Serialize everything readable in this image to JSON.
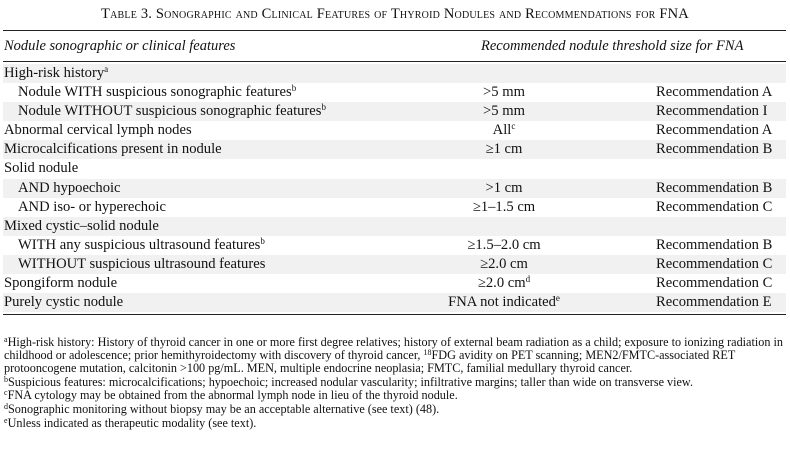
{
  "title": "Table 3. Sonographic and Clinical Features of Thyroid Nodules and Recommendations for FNA",
  "columns": {
    "feature": "Nodule sonographic or clinical features",
    "threshold": "Recommended nodule threshold size for FNA"
  },
  "rows": [
    {
      "feature": "High-risk history",
      "feature_sup": "a",
      "size": "",
      "size_sup": "",
      "rec": "",
      "indent": false,
      "shade": true
    },
    {
      "feature": "Nodule WITH suspicious sonographic features",
      "feature_sup": "b",
      "size": ">5 mm",
      "size_sup": "",
      "rec": "Recommendation A",
      "indent": true,
      "shade": false
    },
    {
      "feature": "Nodule WITHOUT suspicious sonographic features",
      "feature_sup": "b",
      "size": ">5 mm",
      "size_sup": "",
      "rec": "Recommendation I",
      "indent": true,
      "shade": true
    },
    {
      "feature": "Abnormal cervical lymph nodes",
      "feature_sup": "",
      "size": "All",
      "size_sup": "c",
      "rec": "Recommendation A",
      "indent": false,
      "shade": false
    },
    {
      "feature": "Microcalcifications present in nodule",
      "feature_sup": "",
      "size": "≥1 cm",
      "size_sup": "",
      "rec": "Recommendation B",
      "indent": false,
      "shade": true
    },
    {
      "feature": "Solid nodule",
      "feature_sup": "",
      "size": "",
      "size_sup": "",
      "rec": "",
      "indent": false,
      "shade": false
    },
    {
      "feature": "AND hypoechoic",
      "feature_sup": "",
      "size": ">1 cm",
      "size_sup": "",
      "rec": "Recommendation B",
      "indent": true,
      "shade": true
    },
    {
      "feature": "AND iso- or hyperechoic",
      "feature_sup": "",
      "size": "≥1–1.5 cm",
      "size_sup": "",
      "rec": "Recommendation C",
      "indent": true,
      "shade": false
    },
    {
      "feature": "Mixed cystic–solid nodule",
      "feature_sup": "",
      "size": "",
      "size_sup": "",
      "rec": "",
      "indent": false,
      "shade": true
    },
    {
      "feature": "WITH any suspicious ultrasound features",
      "feature_sup": "b",
      "size": "≥1.5–2.0 cm",
      "size_sup": "",
      "rec": "Recommendation B",
      "indent": true,
      "shade": false
    },
    {
      "feature": "WITHOUT suspicious ultrasound features",
      "feature_sup": "",
      "size": "≥2.0 cm",
      "size_sup": "",
      "rec": "Recommendation C",
      "indent": true,
      "shade": true
    },
    {
      "feature": "Spongiform nodule",
      "feature_sup": "",
      "size": "≥2.0 cm",
      "size_sup": "d",
      "rec": "Recommendation C",
      "indent": false,
      "shade": false
    },
    {
      "feature": "Purely cystic nodule",
      "feature_sup": "",
      "size": "FNA not indicated",
      "size_sup": "e",
      "rec": "Recommendation E",
      "indent": false,
      "shade": true
    }
  ],
  "footnotes": [
    {
      "mark": "a",
      "text": "High-risk history: History of thyroid cancer in one or more first degree relatives; history of external beam radiation as a child; exposure to ionizing radiation in childhood or adolescence; prior hemithyroidectomy with discovery of thyroid cancer, ",
      "text_sup": "18",
      "text_after": "FDG avidity on PET scanning; MEN2/FMTC-associated RET protooncogene mutation, calcitonin >100 pg/mL. MEN, multiple endocrine neoplasia; FMTC, familial medullary thyroid cancer."
    },
    {
      "mark": "b",
      "text": "Suspicious features: microcalcifications; hypoechoic; increased nodular vascularity; infiltrative margins; taller than wide on transverse view.",
      "text_sup": "",
      "text_after": ""
    },
    {
      "mark": "c",
      "text": "FNA cytology may be obtained from the abnormal lymph node in lieu of the thyroid nodule.",
      "text_sup": "",
      "text_after": ""
    },
    {
      "mark": "d",
      "text": "Sonographic monitoring without biopsy may be an acceptable alternative (see text) (48).",
      "text_sup": "",
      "text_after": ""
    },
    {
      "mark": "e",
      "text": "Unless indicated as therapeutic modality (see text).",
      "text_sup": "",
      "text_after": ""
    }
  ]
}
